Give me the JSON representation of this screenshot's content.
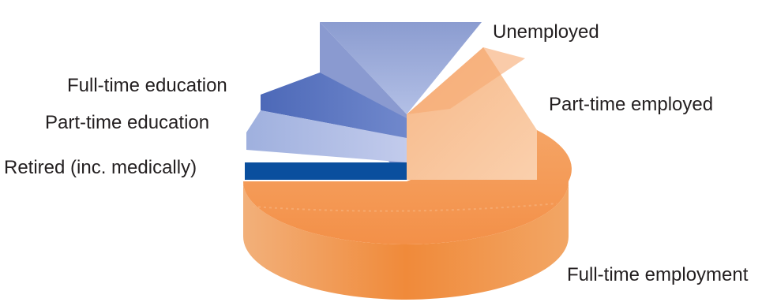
{
  "chart_data": {
    "type": "pie",
    "style": "3d-exploded",
    "title": "",
    "categories": [
      "Full-time employment",
      "Part-time employed",
      "Unemployed",
      "Full-time education",
      "Part-time education",
      "Retired (inc. medically)"
    ],
    "values": [
      65,
      13,
      10,
      6,
      4,
      2
    ],
    "colors": {
      "Full-time employment": "#f4a15c",
      "Part-time employed": "#f9c59a",
      "Unemployed": "#98a8d6",
      "Full-time education": "#5a76c0",
      "Part-time education": "#a9b6e0",
      "Retired (inc. medically)": "#0a4f9e"
    },
    "legend": "labels-outside",
    "labels": [
      "Full-time employment",
      "Part-time employed",
      "Unemployed",
      "Full-time education",
      "Part-time education",
      "Retired (inc. medically)"
    ]
  }
}
